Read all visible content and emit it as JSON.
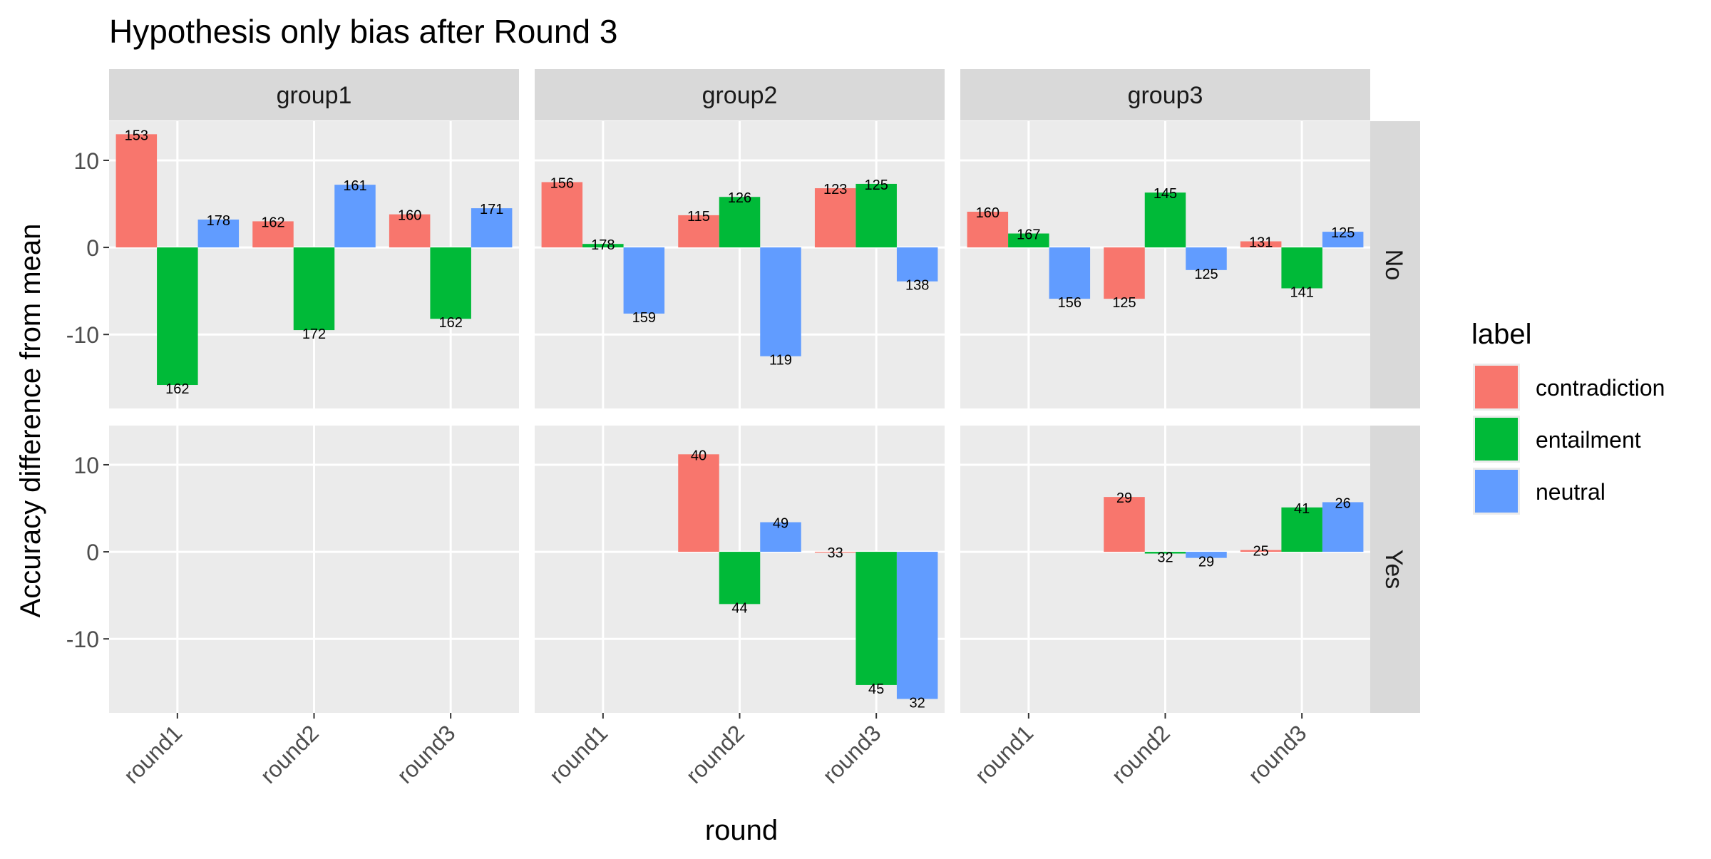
{
  "chart_data": {
    "type": "bar",
    "title": "Hypothesis only bias after Round 3",
    "xlabel": "round",
    "ylabel": "Accuracy difference from mean",
    "ylim": [
      -18.5,
      14.5
    ],
    "y_ticks": [
      -10,
      0,
      10
    ],
    "categories": [
      "round1",
      "round2",
      "round3"
    ],
    "col_facets": [
      "group1",
      "group2",
      "group3"
    ],
    "row_facets": [
      "No",
      "Yes"
    ],
    "legend": {
      "title": "label",
      "placement": "right",
      "entries": [
        "contradiction",
        "entailment",
        "neutral"
      ]
    },
    "colors": {
      "contradiction": "#F8766D",
      "entailment": "#00BA38",
      "neutral": "#619CFF",
      "panel_bg": "#EBEBEB",
      "strip_bg": "#D9D9D9",
      "grid": "#FFFFFF"
    },
    "panels": [
      {
        "col": "group1",
        "row": "No",
        "bars": [
          {
            "round": "round1",
            "label": "contradiction",
            "value": 13.0,
            "count": "153"
          },
          {
            "round": "round1",
            "label": "entailment",
            "value": -15.8,
            "count": "162"
          },
          {
            "round": "round1",
            "label": "neutral",
            "value": 3.2,
            "count": "178"
          },
          {
            "round": "round2",
            "label": "contradiction",
            "value": 3.0,
            "count": "162"
          },
          {
            "round": "round2",
            "label": "entailment",
            "value": -9.5,
            "count": "172"
          },
          {
            "round": "round2",
            "label": "neutral",
            "value": 7.2,
            "count": "161"
          },
          {
            "round": "round3",
            "label": "contradiction",
            "value": 3.8,
            "count": "160"
          },
          {
            "round": "round3",
            "label": "entailment",
            "value": -8.2,
            "count": "162"
          },
          {
            "round": "round3",
            "label": "neutral",
            "value": 4.5,
            "count": "171"
          }
        ]
      },
      {
        "col": "group2",
        "row": "No",
        "bars": [
          {
            "round": "round1",
            "label": "contradiction",
            "value": 7.5,
            "count": "156"
          },
          {
            "round": "round1",
            "label": "entailment",
            "value": 0.4,
            "count": "178"
          },
          {
            "round": "round1",
            "label": "neutral",
            "value": -7.6,
            "count": "159"
          },
          {
            "round": "round2",
            "label": "contradiction",
            "value": 3.7,
            "count": "115"
          },
          {
            "round": "round2",
            "label": "entailment",
            "value": 5.8,
            "count": "126"
          },
          {
            "round": "round2",
            "label": "neutral",
            "value": -12.5,
            "count": "119"
          },
          {
            "round": "round3",
            "label": "contradiction",
            "value": 6.8,
            "count": "123"
          },
          {
            "round": "round3",
            "label": "entailment",
            "value": 7.3,
            "count": "125"
          },
          {
            "round": "round3",
            "label": "neutral",
            "value": -3.9,
            "count": "138"
          }
        ]
      },
      {
        "col": "group3",
        "row": "No",
        "bars": [
          {
            "round": "round1",
            "label": "contradiction",
            "value": 4.1,
            "count": "160"
          },
          {
            "round": "round1",
            "label": "entailment",
            "value": 1.6,
            "count": "167"
          },
          {
            "round": "round1",
            "label": "neutral",
            "value": -5.9,
            "count": "156"
          },
          {
            "round": "round2",
            "label": "contradiction",
            "value": -5.9,
            "count": "125"
          },
          {
            "round": "round2",
            "label": "entailment",
            "value": 6.3,
            "count": "145"
          },
          {
            "round": "round2",
            "label": "neutral",
            "value": -2.6,
            "count": "125"
          },
          {
            "round": "round3",
            "label": "contradiction",
            "value": 0.7,
            "count": "131"
          },
          {
            "round": "round3",
            "label": "entailment",
            "value": -4.7,
            "count": "141"
          },
          {
            "round": "round3",
            "label": "neutral",
            "value": 1.8,
            "count": "125"
          }
        ]
      },
      {
        "col": "group1",
        "row": "Yes",
        "bars": []
      },
      {
        "col": "group2",
        "row": "Yes",
        "bars": [
          {
            "round": "round2",
            "label": "contradiction",
            "value": 11.2,
            "count": "40"
          },
          {
            "round": "round2",
            "label": "entailment",
            "value": -6.0,
            "count": "44"
          },
          {
            "round": "round2",
            "label": "neutral",
            "value": 3.4,
            "count": "49"
          },
          {
            "round": "round3",
            "label": "contradiction",
            "value": 0.0,
            "count": "33"
          },
          {
            "round": "round3",
            "label": "entailment",
            "value": -15.3,
            "count": "45"
          },
          {
            "round": "round3",
            "label": "neutral",
            "value": -16.9,
            "count": "32"
          }
        ]
      },
      {
        "col": "group3",
        "row": "Yes",
        "bars": [
          {
            "round": "round2",
            "label": "contradiction",
            "value": 6.3,
            "count": "29"
          },
          {
            "round": "round2",
            "label": "entailment",
            "value": -0.2,
            "count": "32"
          },
          {
            "round": "round2",
            "label": "neutral",
            "value": -0.7,
            "count": "29"
          },
          {
            "round": "round3",
            "label": "contradiction",
            "value": 0.2,
            "count": "25"
          },
          {
            "round": "round3",
            "label": "entailment",
            "value": 5.1,
            "count": "41"
          },
          {
            "round": "round3",
            "label": "neutral",
            "value": 5.7,
            "count": "26"
          }
        ]
      }
    ]
  }
}
